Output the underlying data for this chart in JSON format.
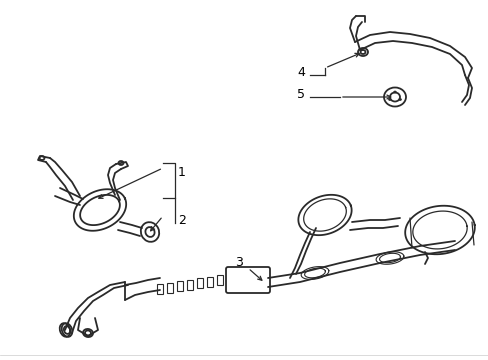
{
  "background_color": "#ffffff",
  "line_color": "#2a2a2a",
  "text_color": "#000000",
  "fig_width": 4.89,
  "fig_height": 3.6,
  "dpi": 100,
  "xlim": [
    0,
    489
  ],
  "ylim": [
    0,
    360
  ]
}
